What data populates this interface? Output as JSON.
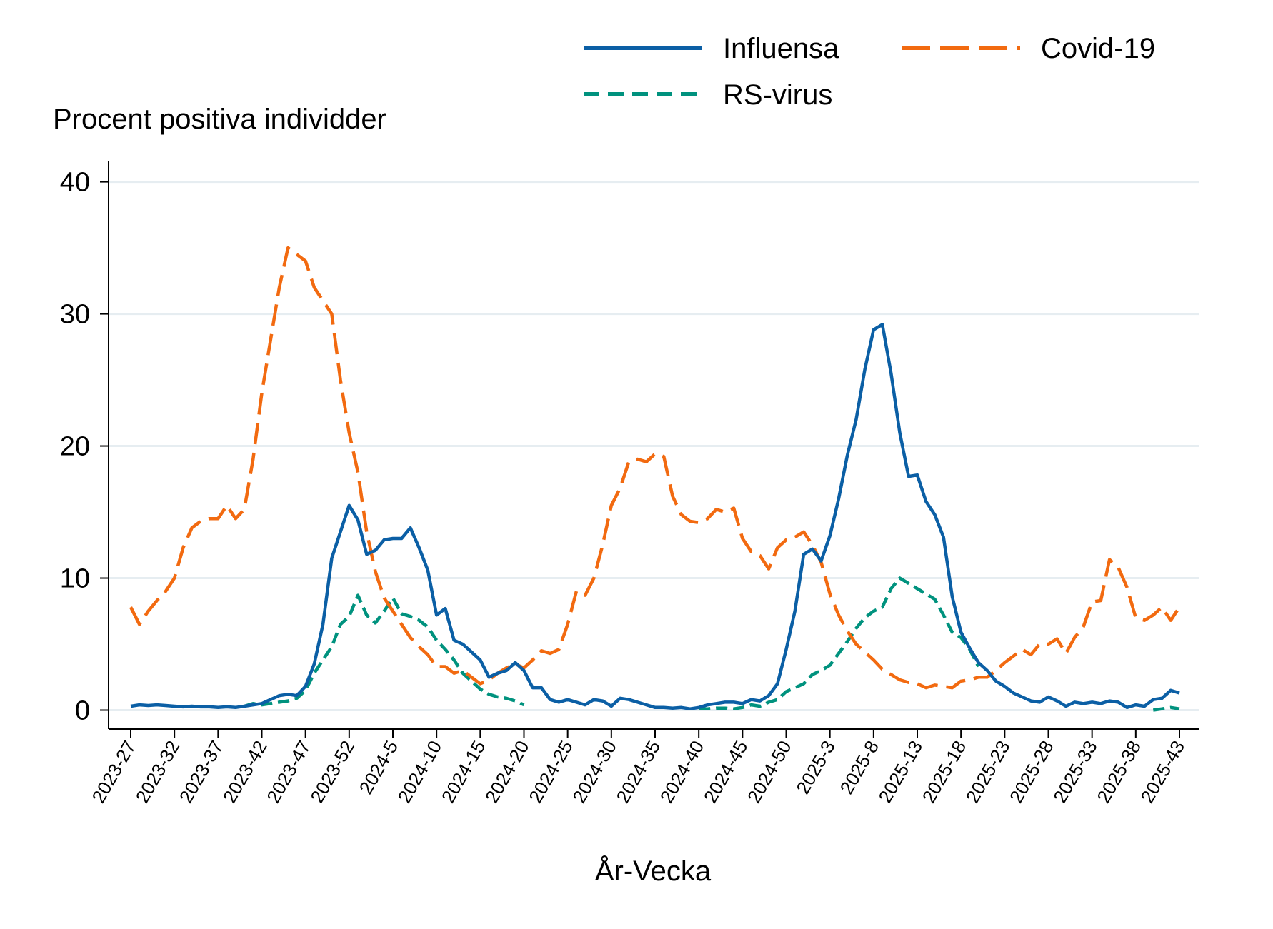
{
  "chart_data": {
    "type": "line",
    "title": "",
    "ylabel": "Procent positiva individder",
    "xlabel": "År-Vecka",
    "ylim": [
      0,
      40
    ],
    "yticks": [
      "0",
      "10",
      "20",
      "30",
      "40"
    ],
    "grid": true,
    "legend_placement": "top-right",
    "x": [
      "2023-27",
      "2023-28",
      "2023-29",
      "2023-30",
      "2023-31",
      "2023-32",
      "2023-33",
      "2023-34",
      "2023-35",
      "2023-36",
      "2023-37",
      "2023-38",
      "2023-39",
      "2023-40",
      "2023-41",
      "2023-42",
      "2023-43",
      "2023-44",
      "2023-45",
      "2023-46",
      "2023-47",
      "2023-48",
      "2023-49",
      "2023-50",
      "2023-51",
      "2023-52",
      "2024-1",
      "2024-2",
      "2024-3",
      "2024-4",
      "2024-5",
      "2024-6",
      "2024-7",
      "2024-8",
      "2024-9",
      "2024-10",
      "2024-11",
      "2024-12",
      "2024-13",
      "2024-14",
      "2024-15",
      "2024-16",
      "2024-17",
      "2024-18",
      "2024-19",
      "2024-20",
      "2024-21",
      "2024-22",
      "2024-23",
      "2024-24",
      "2024-25",
      "2024-26",
      "2024-27",
      "2024-28",
      "2024-29",
      "2024-30",
      "2024-31",
      "2024-32",
      "2024-33",
      "2024-34",
      "2024-35",
      "2024-36",
      "2024-37",
      "2024-38",
      "2024-39",
      "2024-40",
      "2024-41",
      "2024-42",
      "2024-43",
      "2024-44",
      "2024-45",
      "2024-46",
      "2024-47",
      "2024-48",
      "2024-49",
      "2024-50",
      "2024-51",
      "2024-52",
      "2025-1",
      "2025-2",
      "2025-3",
      "2025-4",
      "2025-5",
      "2025-6",
      "2025-7",
      "2025-8",
      "2025-9",
      "2025-10",
      "2025-11",
      "2025-12",
      "2025-13",
      "2025-14",
      "2025-15",
      "2025-16",
      "2025-17",
      "2025-18",
      "2025-19",
      "2025-20",
      "2025-21",
      "2025-22",
      "2025-23",
      "2025-24",
      "2025-25",
      "2025-26",
      "2025-27",
      "2025-28",
      "2025-29",
      "2025-30",
      "2025-31",
      "2025-32",
      "2025-33",
      "2025-34",
      "2025-35",
      "2025-36",
      "2025-37",
      "2025-38",
      "2025-39",
      "2025-40",
      "2025-41",
      "2025-42",
      "2025-43"
    ],
    "xticks": [
      "2023-27",
      "2023-32",
      "2023-37",
      "2023-42",
      "2023-47",
      "2023-52",
      "2024-5",
      "2024-10",
      "2024-15",
      "2024-20",
      "2024-25",
      "2024-30",
      "2024-35",
      "2024-40",
      "2024-45",
      "2024-50",
      "2025-3",
      "2025-8",
      "2025-13",
      "2025-18",
      "2025-23",
      "2025-28",
      "2025-33",
      "2025-38",
      "2025-43"
    ],
    "series": [
      {
        "name": "Influensa",
        "color": "#0b5fa5",
        "style": "solid",
        "values": [
          0.3,
          0.4,
          0.35,
          0.4,
          0.35,
          0.3,
          0.25,
          0.3,
          0.25,
          0.25,
          0.2,
          0.25,
          0.2,
          0.3,
          0.4,
          0.5,
          0.8,
          1.1,
          1.2,
          1.1,
          1.8,
          3.5,
          6.5,
          11.5,
          13.5,
          15.5,
          14.4,
          11.8,
          12.1,
          12.9,
          13.0,
          13.0,
          13.8,
          12.3,
          10.6,
          7.2,
          7.7,
          5.3,
          5.0,
          4.4,
          3.8,
          2.5,
          2.8,
          3.0,
          3.6,
          3.0,
          1.7,
          1.7,
          0.8,
          0.6,
          0.8,
          0.6,
          0.4,
          0.8,
          0.7,
          0.3,
          0.9,
          0.8,
          0.6,
          0.4,
          0.2,
          0.2,
          0.15,
          0.2,
          0.1,
          0.2,
          0.4,
          0.5,
          0.6,
          0.6,
          0.5,
          0.8,
          0.7,
          1.1,
          2.0,
          4.6,
          7.5,
          11.8,
          12.2,
          11.3,
          13.2,
          16,
          19.3,
          22,
          25.8,
          28.8,
          29.2,
          25.5,
          21,
          17.7,
          17.8,
          15.8,
          14.8,
          13.1,
          8.6,
          5.9,
          4.7,
          3.6,
          3.0,
          2.2,
          1.8,
          1.3,
          1.0,
          0.7,
          0.6,
          1.0,
          0.7,
          0.3,
          0.6,
          0.5,
          0.6,
          0.5,
          0.7,
          0.6,
          0.2,
          0.4,
          0.3,
          0.8,
          0.9,
          1.5,
          1.3
        ]
      },
      {
        "name": "Covid-19",
        "color": "#f26a10",
        "style": "long-dash",
        "values": [
          7.8,
          6.5,
          7.5,
          8.3,
          9.0,
          10.0,
          12.3,
          13.8,
          14.3,
          14.5,
          14.5,
          15.5,
          14.5,
          15.2,
          19,
          24,
          28,
          32,
          35,
          34.5,
          34,
          32,
          31,
          30,
          25,
          21,
          18,
          13.5,
          10.5,
          8.5,
          7.5,
          6.5,
          5.5,
          4.8,
          4.2,
          3.3,
          3.3,
          2.8,
          3.0,
          2.5,
          2.0,
          2.3,
          2.8,
          3.2,
          3.5,
          3.2,
          3.8,
          4.5,
          4.3,
          4.6,
          6.5,
          9.0,
          8.7,
          10,
          12.5,
          15.5,
          16.8,
          18.8,
          19.0,
          18.8,
          19.4,
          19.2,
          16.2,
          14.8,
          14.3,
          14.2,
          14.5,
          15.2,
          15.0,
          15.3,
          13.0,
          12.0,
          11.7,
          10.7,
          12.3,
          12.9,
          13.1,
          13.5,
          12.5,
          11.2,
          8.8,
          7.2,
          6.0,
          5.0,
          4.4,
          3.8,
          3.1,
          2.7,
          2.3,
          2.1,
          2.0,
          1.7,
          1.9,
          1.8,
          1.7,
          2.2,
          2.3,
          2.5,
          2.5,
          3.0,
          3.6,
          4.1,
          4.6,
          4.2,
          5.0,
          5.0,
          5.4,
          4.3,
          5.5,
          6.3,
          8.2,
          8.3,
          11.4,
          10.8,
          9.3,
          7.0,
          6.8,
          7.2,
          7.8,
          6.8,
          7.8
        ]
      },
      {
        "name": "RS-virus",
        "color": "#00927e",
        "style": "short-dash",
        "values": [
          null,
          null,
          null,
          null,
          null,
          null,
          null,
          null,
          null,
          null,
          null,
          null,
          null,
          0.3,
          0.5,
          0.4,
          0.5,
          0.6,
          0.7,
          0.9,
          1.5,
          2.8,
          3.8,
          4.8,
          6.5,
          7.1,
          8.7,
          7.2,
          6.6,
          7.5,
          8.5,
          7.3,
          7.1,
          6.8,
          6.3,
          5.3,
          4.6,
          3.8,
          2.8,
          2.2,
          1.6,
          1.2,
          1.0,
          0.9,
          0.7,
          0.4,
          null,
          null,
          null,
          null,
          null,
          null,
          null,
          null,
          null,
          null,
          null,
          null,
          null,
          null,
          null,
          null,
          null,
          null,
          null,
          0.1,
          0.1,
          0.15,
          0.15,
          0.1,
          0.2,
          0.4,
          0.3,
          0.6,
          0.8,
          1.4,
          1.7,
          2.0,
          2.7,
          3.0,
          3.4,
          4.3,
          5.2,
          6.2,
          7.0,
          7.5,
          7.8,
          9.2,
          10.0,
          9.6,
          9.2,
          8.8,
          8.4,
          7.2,
          5.9,
          5.5,
          4.6,
          3.3,
          null,
          null,
          null,
          null,
          null,
          null,
          null,
          null,
          null,
          null,
          null,
          null,
          null,
          null,
          null,
          null,
          null,
          null,
          null,
          0.0,
          0.1,
          0.2,
          0.1
        ]
      }
    ]
  }
}
